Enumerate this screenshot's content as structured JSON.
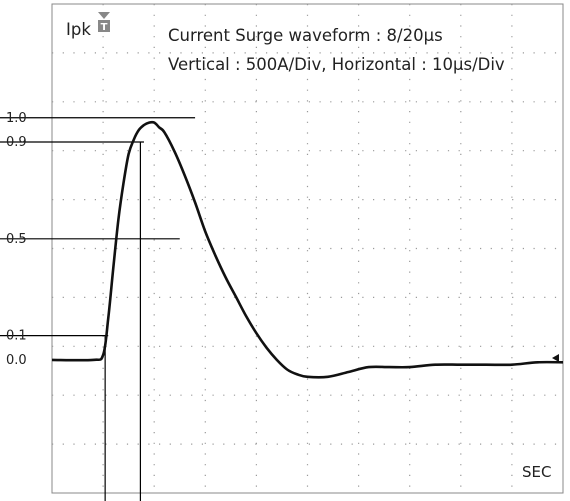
{
  "chart_data": {
    "type": "line",
    "title_line1": "Current Surge waveform : 8/20μs",
    "title_line2": "Vertical : 500A/Div,  Horizontal : 10μs/Div",
    "peak_label": "Ipk",
    "peak_marker_letter": "T",
    "x_unit_label": "SEC",
    "y_levels": [
      {
        "label": "1.0",
        "value": 1.0
      },
      {
        "label": "0.9",
        "value": 0.9
      },
      {
        "label": "0.5",
        "value": 0.5
      },
      {
        "label": "0.1",
        "value": 0.1
      },
      {
        "label": "0.0",
        "value": 0.0
      }
    ],
    "grid": {
      "on": true,
      "style": "dotted",
      "x_divisions": 10,
      "y_divisions": 10
    },
    "ylim": [
      -0.55,
      1.47
    ],
    "xlim_us": [
      -10,
      90
    ],
    "trigger_marker": "right-edge at 0.05",
    "series": [
      {
        "t_us": [
          -10,
          -2,
          0,
          1,
          2,
          3,
          4,
          5,
          6,
          7,
          8,
          9,
          10,
          11,
          12,
          14,
          16,
          18,
          20,
          22,
          24,
          26,
          28,
          30,
          32,
          34,
          36,
          38,
          40,
          44,
          48,
          52,
          56,
          60,
          65,
          70,
          75,
          80,
          85,
          90
        ],
        "values": [
          0,
          0,
          0.02,
          0.17,
          0.38,
          0.58,
          0.73,
          0.85,
          0.91,
          0.95,
          0.97,
          0.98,
          0.98,
          0.96,
          0.94,
          0.86,
          0.76,
          0.65,
          0.53,
          0.43,
          0.34,
          0.26,
          0.18,
          0.11,
          0.05,
          0.0,
          -0.04,
          -0.06,
          -0.07,
          -0.07,
          -0.05,
          -0.03,
          -0.03,
          -0.03,
          -0.02,
          -0.02,
          -0.02,
          -0.02,
          -0.01,
          -0.01
        ]
      }
    ],
    "colors": {
      "trace": "#111111",
      "grid": "#9a9a9a",
      "reference_lines": "#000000",
      "marker": "#888888"
    }
  }
}
